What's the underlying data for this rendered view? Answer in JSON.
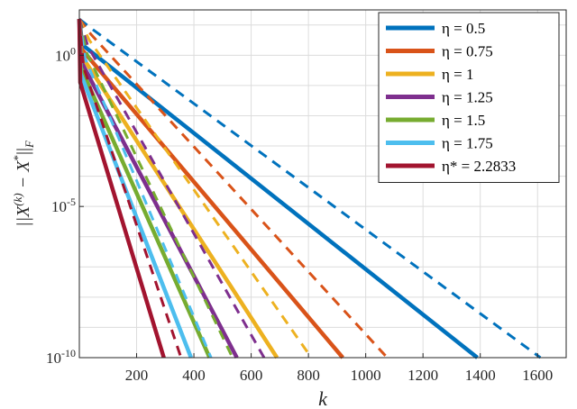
{
  "chart_data": {
    "type": "line",
    "xlabel": "k",
    "ylabel": "||X^(k) − X*||_F",
    "y_scale": "log",
    "xlim": [
      0,
      1700
    ],
    "ylim_exponent": [
      -10,
      1.5
    ],
    "grid": true,
    "legend_position": "top-right",
    "x_ticks": [
      200,
      400,
      600,
      800,
      1000,
      1200,
      1400,
      1600
    ],
    "y_ticks": [
      {
        "exp": 0,
        "label_base": "10",
        "label_exp": "0"
      },
      {
        "exp": -5,
        "label_base": "10",
        "label_exp": "-5"
      },
      {
        "exp": -10,
        "label_base": "10",
        "label_exp": "-10"
      }
    ],
    "series": [
      {
        "name": "η = 0.5",
        "color": "#0072BD",
        "solid": [
          [
            0,
            1.2
          ],
          [
            10,
            0.35
          ],
          [
            1390,
            -10
          ]
        ],
        "dashed": [
          [
            0,
            1.2
          ],
          [
            40,
            0.9
          ],
          [
            1610,
            -10
          ]
        ]
      },
      {
        "name": "η = 0.75",
        "color": "#D95319",
        "solid": [
          [
            0,
            1.2
          ],
          [
            8,
            0.2
          ],
          [
            920,
            -10
          ]
        ],
        "dashed": [
          [
            0,
            1.2
          ],
          [
            40,
            0.7
          ],
          [
            1075,
            -10
          ]
        ]
      },
      {
        "name": "η = 1",
        "color": "#EDB120",
        "solid": [
          [
            0,
            1.2
          ],
          [
            7,
            0.0
          ],
          [
            690,
            -10
          ]
        ],
        "dashed": [
          [
            0,
            1.2
          ],
          [
            35,
            0.5
          ],
          [
            810,
            -10
          ]
        ]
      },
      {
        "name": "η = 1.25",
        "color": "#7E2F8E",
        "solid": [
          [
            0,
            1.2
          ],
          [
            6,
            -0.2
          ],
          [
            550,
            -10
          ]
        ],
        "dashed": [
          [
            0,
            1.2
          ],
          [
            30,
            0.3
          ],
          [
            645,
            -10
          ]
        ]
      },
      {
        "name": "η = 1.5",
        "color": "#77AC30",
        "solid": [
          [
            0,
            1.2
          ],
          [
            5,
            -0.4
          ],
          [
            455,
            -10
          ]
        ],
        "dashed": [
          [
            0,
            1.2
          ],
          [
            25,
            0.1
          ],
          [
            535,
            -10
          ]
        ]
      },
      {
        "name": "η = 1.75",
        "color": "#4DBEEE",
        "solid": [
          [
            0,
            1.2
          ],
          [
            4,
            -0.6
          ],
          [
            390,
            -10
          ]
        ],
        "dashed": [
          [
            0,
            1.2
          ],
          [
            20,
            -0.1
          ],
          [
            460,
            -10
          ]
        ]
      },
      {
        "name": "η* = 2.2833",
        "color": "#A2142F",
        "solid": [
          [
            0,
            1.2
          ],
          [
            3,
            -0.9
          ],
          [
            295,
            -10
          ]
        ],
        "dashed": [
          [
            0,
            1.2
          ],
          [
            15,
            -0.4
          ],
          [
            355,
            -10
          ]
        ]
      }
    ]
  }
}
